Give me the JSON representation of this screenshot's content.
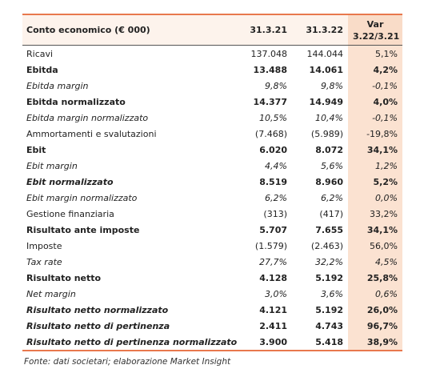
{
  "table": {
    "header": [
      "Conto economico (€ 000)",
      "31.3.21",
      "31.3.22",
      "Var",
      "3.22/3.21"
    ],
    "rows": [
      [
        "Ricavi",
        "137.048",
        "144.044",
        "5,1%"
      ],
      [
        "Ebitda",
        "13.488",
        "14.061",
        "4,2%"
      ],
      [
        "Ebitda margin",
        "9,8%",
        "9,8%",
        "-0,1%"
      ],
      [
        "Ebitda normalizzato",
        "14.377",
        "14.949",
        "4,0%"
      ],
      [
        "Ebitda margin normalizzato",
        "10,5%",
        "10,4%",
        "-0,1%"
      ],
      [
        "Ammortamenti e svalutazioni",
        "(7.468)",
        "(5.989)",
        "-19,8%"
      ],
      [
        "Ebit",
        "6.020",
        "8.072",
        "34,1%"
      ],
      [
        "Ebit margin",
        "4,4%",
        "5,6%",
        "1,2%"
      ],
      [
        "Ebit normalizzato",
        "8.519",
        "8.960",
        "5,2%"
      ],
      [
        "Ebit margin normalizzato",
        "6,2%",
        "6,2%",
        "0,0%"
      ],
      [
        "Gestione finanziaria",
        "(313)",
        "(417)",
        "33,2%"
      ],
      [
        "Risultato ante imposte",
        "5.707",
        "7.655",
        "34,1%"
      ],
      [
        "Imposte",
        "(1.579)",
        "(2.463)",
        "56,0%"
      ],
      [
        "Tax rate",
        "27,7%",
        "32,2%",
        "4,5%"
      ],
      [
        "Risultato netto",
        "4.128",
        "5.192",
        "25,8%"
      ],
      [
        "Net margin",
        "3,0%",
        "3,6%",
        "0,6%"
      ],
      [
        "Risultato netto normalizzato",
        "4.121",
        "5.192",
        "26,0%"
      ],
      [
        "Risultato netto di pertinenza",
        "2.411",
        "4.743",
        "96,7%"
      ],
      [
        "Risultato netto di pertinenza normalizzato",
        "3.900",
        "5.418",
        "38,9%"
      ]
    ],
    "footnote": "Fonte: dati societari; elaborazione Market Insight"
  }
}
